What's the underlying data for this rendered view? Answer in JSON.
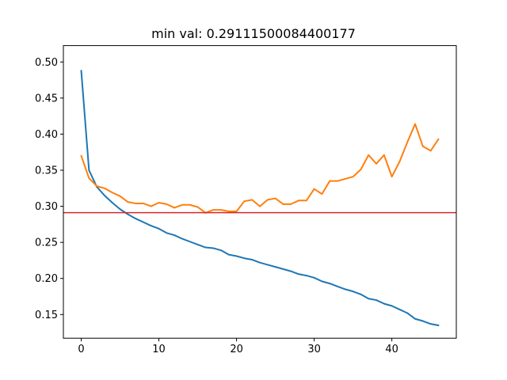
{
  "chart_data": {
    "type": "line",
    "title": "min val: 0.29111500084400177",
    "xlabel": "",
    "ylabel": "",
    "xlim": [
      -2.3,
      48.3
    ],
    "ylim": [
      0.1172,
      0.5227
    ],
    "xticks": [
      0,
      10,
      20,
      30,
      40
    ],
    "xtick_labels": [
      "0",
      "10",
      "20",
      "30",
      "40"
    ],
    "yticks": [
      0.15,
      0.2,
      0.25,
      0.3,
      0.35,
      0.4,
      0.45,
      0.5
    ],
    "ytick_labels": [
      "0.15",
      "0.20",
      "0.25",
      "0.30",
      "0.35",
      "0.40",
      "0.45",
      "0.50"
    ],
    "grid": false,
    "legend": "none",
    "x": [
      0,
      1,
      2,
      3,
      4,
      5,
      6,
      7,
      8,
      9,
      10,
      11,
      12,
      13,
      14,
      15,
      16,
      17,
      18,
      19,
      20,
      21,
      22,
      23,
      24,
      25,
      26,
      27,
      28,
      29,
      30,
      31,
      32,
      33,
      34,
      35,
      36,
      37,
      38,
      39,
      40,
      41,
      42,
      43,
      44,
      45,
      46
    ],
    "series": [
      {
        "color": "#1f77b4",
        "values": [
          0.488,
          0.35,
          0.327,
          0.315,
          0.305,
          0.296,
          0.289,
          0.283,
          0.278,
          0.273,
          0.269,
          0.263,
          0.26,
          0.255,
          0.251,
          0.247,
          0.243,
          0.242,
          0.239,
          0.233,
          0.231,
          0.228,
          0.226,
          0.222,
          0.219,
          0.216,
          0.213,
          0.21,
          0.206,
          0.204,
          0.201,
          0.196,
          0.193,
          0.189,
          0.185,
          0.182,
          0.178,
          0.172,
          0.17,
          0.165,
          0.162,
          0.157,
          0.152,
          0.144,
          0.141,
          0.137,
          0.135
        ]
      },
      {
        "color": "#ff7f0e",
        "values": [
          0.37,
          0.339,
          0.328,
          0.325,
          0.319,
          0.314,
          0.306,
          0.304,
          0.304,
          0.3,
          0.305,
          0.303,
          0.298,
          0.302,
          0.302,
          0.299,
          0.291,
          0.295,
          0.295,
          0.293,
          0.293,
          0.307,
          0.309,
          0.3,
          0.309,
          0.311,
          0.303,
          0.303,
          0.308,
          0.308,
          0.324,
          0.317,
          0.335,
          0.335,
          0.338,
          0.341,
          0.351,
          0.371,
          0.359,
          0.371,
          0.341,
          0.362,
          0.389,
          0.414,
          0.383,
          0.377,
          0.393
        ]
      }
    ],
    "hlines": [
      {
        "y": 0.29111500084400177,
        "color": "#d62728"
      }
    ]
  }
}
